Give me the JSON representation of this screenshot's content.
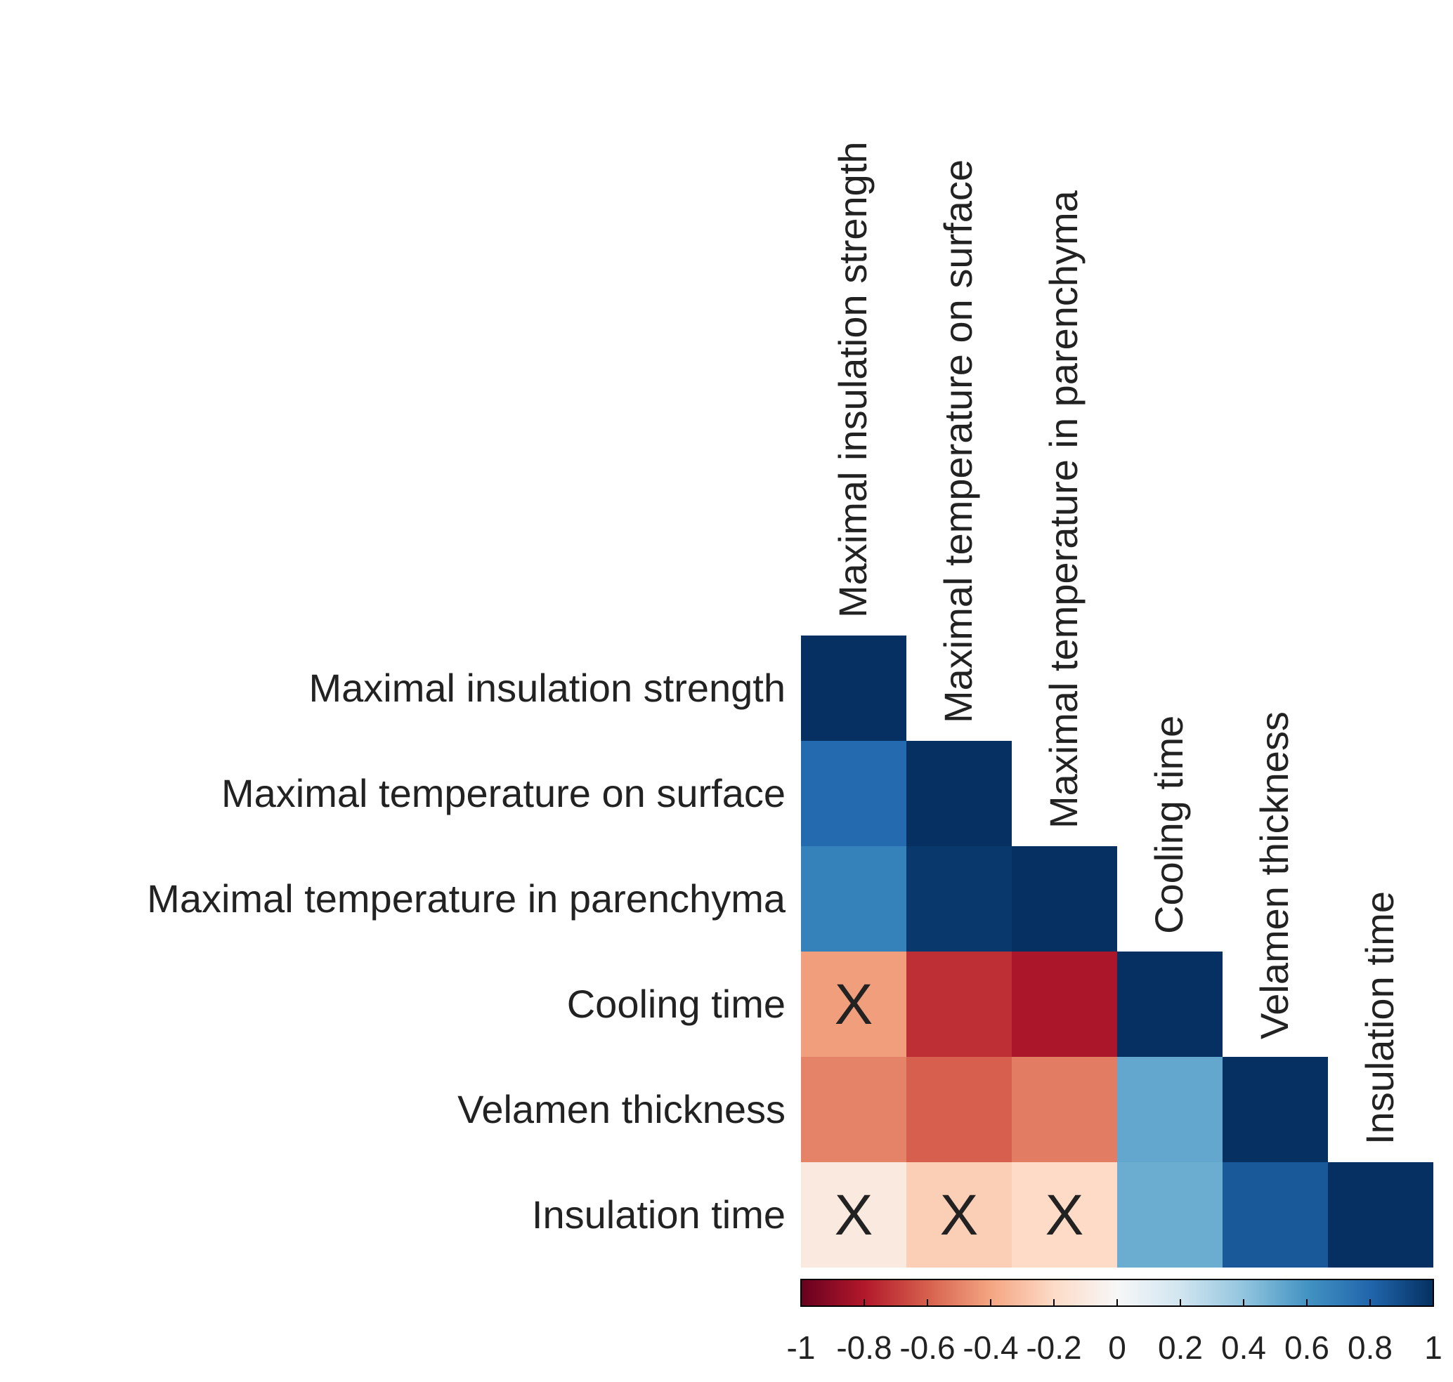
{
  "chart_data": {
    "type": "heatmap",
    "title": "",
    "variables": [
      "Maximal insulation strength",
      "Maximal temperature on surface",
      "Maximal temperature in parenchyma",
      "Cooling time",
      "Velamen thickness",
      "Insulation time"
    ],
    "lower_triangle": [
      [
        1.0
      ],
      [
        0.78,
        1.0
      ],
      [
        0.68,
        0.97,
        1.0
      ],
      [
        -0.42,
        -0.74,
        -0.82,
        1.0
      ],
      [
        -0.5,
        -0.6,
        -0.52,
        0.52,
        1.0
      ],
      [
        -0.1,
        -0.25,
        -0.2,
        0.5,
        0.85,
        1.0
      ]
    ],
    "non_significant": [
      [
        3,
        0
      ],
      [
        5,
        0
      ],
      [
        5,
        1
      ],
      [
        5,
        2
      ]
    ],
    "non_significant_marker": "X",
    "color_scale": {
      "range": [
        -1,
        1
      ],
      "stops": [
        "#67001f",
        "#b2182b",
        "#d6604d",
        "#f4a582",
        "#fddbc7",
        "#f7f7f7",
        "#d1e5f0",
        "#92c5de",
        "#4393c3",
        "#2166ac",
        "#053061"
      ]
    },
    "colorbar": {
      "ticks": [
        -1,
        -0.8,
        -0.6,
        -0.4,
        -0.2,
        0,
        0.2,
        0.4,
        0.6,
        0.8,
        1
      ],
      "tick_labels": [
        "-1",
        "-0.8",
        "-0.6",
        "-0.4",
        "-0.2",
        "0",
        "0.2",
        "0.4",
        "0.6",
        "0.8",
        "1"
      ]
    }
  }
}
